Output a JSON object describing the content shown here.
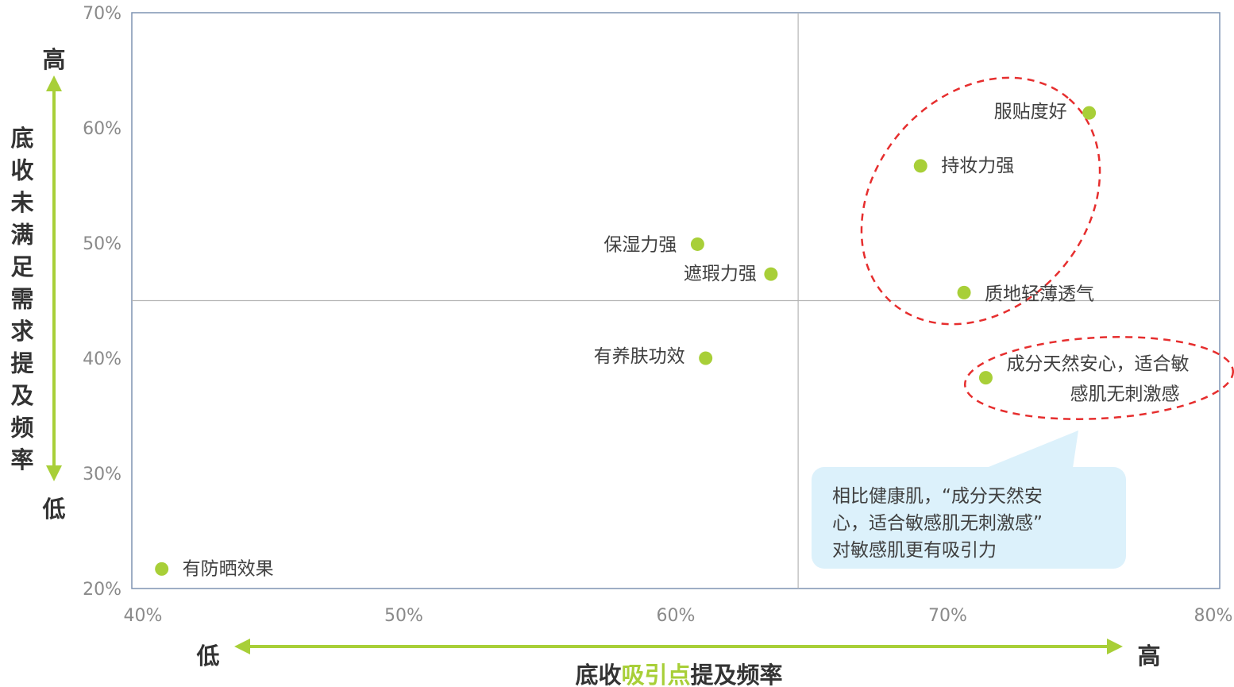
{
  "chart_data": {
    "type": "scatter",
    "xlim": [
      40,
      80
    ],
    "ylim": [
      20,
      70
    ],
    "x_ticks": [
      "40%",
      "50%",
      "60%",
      "70%",
      "80%"
    ],
    "y_ticks": [
      "70%",
      "60%",
      "50%",
      "40%",
      "30%",
      "20%"
    ],
    "x_tick_values": [
      40,
      50,
      60,
      70,
      80
    ],
    "y_tick_values": [
      70,
      60,
      50,
      40,
      30,
      20
    ],
    "quadrant_x": 64.5,
    "quadrant_y": 45,
    "grid": false,
    "points": [
      {
        "label": "服贴度好",
        "x": 75.2,
        "y": 61.3
      },
      {
        "label": "持妆力强",
        "x": 69.0,
        "y": 56.7
      },
      {
        "label": "质地轻薄透气",
        "x": 70.6,
        "y": 45.7
      },
      {
        "label": "保湿力强",
        "x": 60.8,
        "y": 49.9
      },
      {
        "label": "遮瑕力强",
        "x": 63.5,
        "y": 47.3
      },
      {
        "label": "有养肤功效",
        "x": 61.1,
        "y": 40.0
      },
      {
        "label": "成分天然安心，适合敏感肌无刺激感",
        "x": 71.4,
        "y": 38.3
      },
      {
        "label": "有防晒效果",
        "x": 41.1,
        "y": 21.7
      }
    ],
    "point_color": "#a8cf38",
    "x_axis": {
      "low": "低",
      "high": "高",
      "title_parts": [
        "底收",
        "吸引点",
        "提及频率"
      ]
    },
    "y_axis": {
      "low": "低",
      "high": "高",
      "title_chars": [
        "底",
        "收",
        "未",
        "满",
        "足",
        "需",
        "求",
        "提",
        "及",
        "频",
        "率"
      ]
    },
    "colors": {
      "accent": "#a8cf38",
      "text_dark": "#333333",
      "dashed_ellipse": "#e62e2e",
      "callout_bg": "#dcf1fb",
      "frame": "#7f93b2"
    }
  },
  "point_label_lines": {
    "服贴度好": [
      "服贴度好"
    ],
    "持妆力强": [
      "持妆力强"
    ],
    "质地轻薄透气": [
      "质地轻薄透气"
    ],
    "保湿力强": [
      "保湿力强"
    ],
    "遮瑕力强": [
      "遮瑕力强"
    ],
    "有养肤功效": [
      "有养肤功效"
    ],
    "成分天然安心，适合敏感肌无刺激感": [
      "成分天然安心，适合敏",
      "感肌无刺激感"
    ],
    "有防晒效果": [
      "有防晒效果"
    ]
  },
  "callout": {
    "lines": [
      "相比健康肌，“成分天然安",
      "心，适合敏感肌无刺激感”",
      "对敏感肌更有吸引力"
    ]
  }
}
